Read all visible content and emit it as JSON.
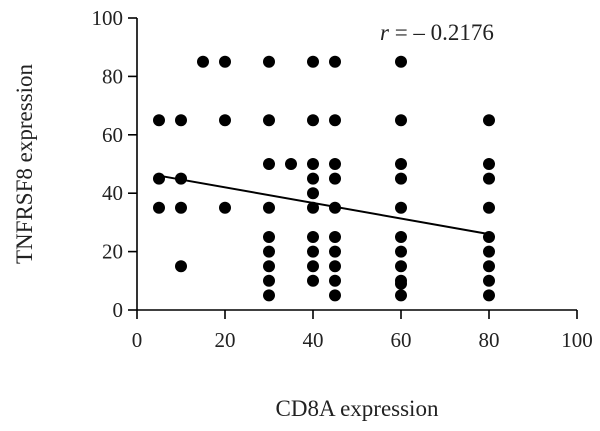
{
  "chart_data": {
    "type": "scatter",
    "xlabel": "CD8A expression",
    "ylabel": "TNFRSF8 expression",
    "xlim": [
      0,
      100
    ],
    "ylim": [
      0,
      100
    ],
    "xticks": [
      0,
      20,
      40,
      60,
      80,
      100
    ],
    "yticks": [
      0,
      20,
      40,
      60,
      80,
      100
    ],
    "grid": false,
    "annotation": {
      "symbol": "r",
      "text": " = – 0.2176"
    },
    "trend_line": {
      "x": [
        5,
        80
      ],
      "y": [
        46,
        26
      ]
    },
    "series": [
      {
        "points": [
          {
            "x": 5,
            "y": 65
          },
          {
            "x": 5,
            "y": 45
          },
          {
            "x": 5,
            "y": 35
          },
          {
            "x": 10,
            "y": 65
          },
          {
            "x": 10,
            "y": 45
          },
          {
            "x": 10,
            "y": 35
          },
          {
            "x": 10,
            "y": 15
          },
          {
            "x": 15,
            "y": 85
          },
          {
            "x": 20,
            "y": 85
          },
          {
            "x": 20,
            "y": 65
          },
          {
            "x": 20,
            "y": 35
          },
          {
            "x": 30,
            "y": 85
          },
          {
            "x": 30,
            "y": 65
          },
          {
            "x": 30,
            "y": 50
          },
          {
            "x": 30,
            "y": 35
          },
          {
            "x": 30,
            "y": 25
          },
          {
            "x": 30,
            "y": 20
          },
          {
            "x": 30,
            "y": 15
          },
          {
            "x": 30,
            "y": 10
          },
          {
            "x": 30,
            "y": 5
          },
          {
            "x": 35,
            "y": 50
          },
          {
            "x": 40,
            "y": 85
          },
          {
            "x": 40,
            "y": 65
          },
          {
            "x": 40,
            "y": 50
          },
          {
            "x": 40,
            "y": 45
          },
          {
            "x": 40,
            "y": 40
          },
          {
            "x": 40,
            "y": 35
          },
          {
            "x": 40,
            "y": 25
          },
          {
            "x": 40,
            "y": 20
          },
          {
            "x": 40,
            "y": 15
          },
          {
            "x": 40,
            "y": 10
          },
          {
            "x": 45,
            "y": 85
          },
          {
            "x": 45,
            "y": 65
          },
          {
            "x": 45,
            "y": 50
          },
          {
            "x": 45,
            "y": 45
          },
          {
            "x": 45,
            "y": 35
          },
          {
            "x": 45,
            "y": 25
          },
          {
            "x": 45,
            "y": 20
          },
          {
            "x": 45,
            "y": 15
          },
          {
            "x": 45,
            "y": 10
          },
          {
            "x": 45,
            "y": 5
          },
          {
            "x": 60,
            "y": 85
          },
          {
            "x": 60,
            "y": 65
          },
          {
            "x": 60,
            "y": 50
          },
          {
            "x": 60,
            "y": 45
          },
          {
            "x": 60,
            "y": 35
          },
          {
            "x": 60,
            "y": 25
          },
          {
            "x": 60,
            "y": 20
          },
          {
            "x": 60,
            "y": 15
          },
          {
            "x": 60,
            "y": 10
          },
          {
            "x": 60,
            "y": 9
          },
          {
            "x": 60,
            "y": 5
          },
          {
            "x": 80,
            "y": 65
          },
          {
            "x": 80,
            "y": 50
          },
          {
            "x": 80,
            "y": 45
          },
          {
            "x": 80,
            "y": 35
          },
          {
            "x": 80,
            "y": 25
          },
          {
            "x": 80,
            "y": 20
          },
          {
            "x": 80,
            "y": 15
          },
          {
            "x": 80,
            "y": 10
          },
          {
            "x": 80,
            "y": 5
          }
        ]
      }
    ]
  }
}
